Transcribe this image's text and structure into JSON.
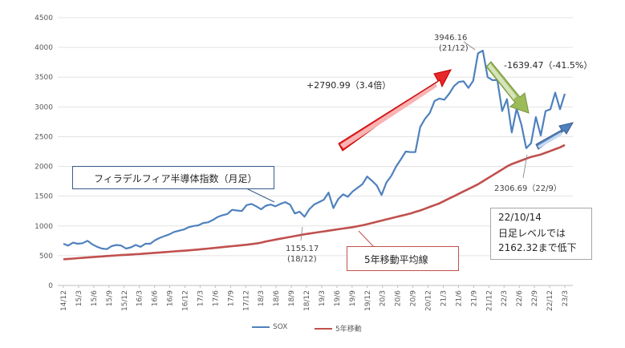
{
  "chart_data": {
    "type": "line",
    "ylim": [
      0,
      4500
    ],
    "yticks": [
      0,
      500,
      1000,
      1500,
      2000,
      2500,
      3000,
      3500,
      4000,
      4500
    ],
    "xticks": [
      "14/12",
      "15/3",
      "15/6",
      "15/9",
      "15/12",
      "16/3",
      "16/6",
      "16/9",
      "16/12",
      "17/3",
      "17/6",
      "17/9",
      "17/12",
      "18/3",
      "18/6",
      "18/9",
      "18/12",
      "19/3",
      "19/6",
      "19/9",
      "19/12",
      "20/3",
      "20/6",
      "20/9",
      "20/12",
      "21/3",
      "21/6",
      "21/9",
      "21/12",
      "22/3",
      "22/6",
      "22/9",
      "22/12",
      "23/3"
    ],
    "series": [
      {
        "name": "SOX",
        "color": "#4F81BD",
        "values": [
          700,
          670,
          720,
          700,
          710,
          750,
          690,
          650,
          620,
          610,
          660,
          680,
          670,
          620,
          640,
          680,
          650,
          700,
          700,
          760,
          800,
          830,
          860,
          900,
          920,
          940,
          980,
          1000,
          1010,
          1050,
          1060,
          1100,
          1150,
          1180,
          1200,
          1270,
          1260,
          1250,
          1350,
          1370,
          1330,
          1280,
          1340,
          1360,
          1330,
          1370,
          1400,
          1360,
          1210,
          1240,
          1155.17,
          1280,
          1360,
          1400,
          1440,
          1560,
          1300,
          1450,
          1530,
          1490,
          1580,
          1640,
          1700,
          1830,
          1760,
          1680,
          1520,
          1730,
          1840,
          2000,
          2120,
          2250,
          2240,
          2240,
          2660,
          2800,
          2900,
          3100,
          3140,
          3120,
          3220,
          3350,
          3420,
          3430,
          3320,
          3440,
          3900,
          3946.16,
          3500,
          3450,
          3450,
          2930,
          3130,
          2570,
          2970,
          2700,
          2306.69,
          2390,
          2830,
          2520,
          2930,
          2960,
          3240,
          2960,
          3220
        ]
      },
      {
        "name": "5年移動",
        "color": "#C0504D",
        "values": [
          440,
          446,
          452,
          458,
          464,
          470,
          476,
          482,
          488,
          494,
          500,
          505,
          510,
          515,
          520,
          525,
          530,
          536,
          542,
          548,
          554,
          560,
          566,
          572,
          578,
          584,
          590,
          597,
          604,
          612,
          620,
          628,
          636,
          644,
          652,
          660,
          668,
          676,
          685,
          695,
          705,
          720,
          740,
          755,
          770,
          785,
          800,
          815,
          830,
          845,
          860,
          872,
          884,
          896,
          908,
          920,
          932,
          944,
          956,
          968,
          980,
          995,
          1010,
          1030,
          1050,
          1070,
          1090,
          1110,
          1130,
          1150,
          1170,
          1190,
          1210,
          1235,
          1260,
          1290,
          1320,
          1350,
          1380,
          1420,
          1460,
          1500,
          1540,
          1580,
          1620,
          1660,
          1700,
          1750,
          1800,
          1850,
          1900,
          1950,
          2000,
          2040,
          2070,
          2100,
          2130,
          2160,
          2180,
          2200,
          2230,
          2260,
          2290,
          2320,
          2360
        ]
      }
    ],
    "annotations": {
      "peak_label": "3946.16",
      "peak_date": "(21/12)",
      "trough_label": "1155.17",
      "trough_date": "(18/12)",
      "recent_low": "2306.69（22/9）",
      "rise_text": "+2790.99（3.4倍）",
      "fall_text": "-1639.47（-41.5%）",
      "sox_callout": "フィラデルフィア半導体指数（月足）",
      "ma_callout": "5年移動平均線",
      "note_line1": "22/10/14",
      "note_line2": "日足レベルでは",
      "note_line3": "2162.32まで低下"
    }
  }
}
